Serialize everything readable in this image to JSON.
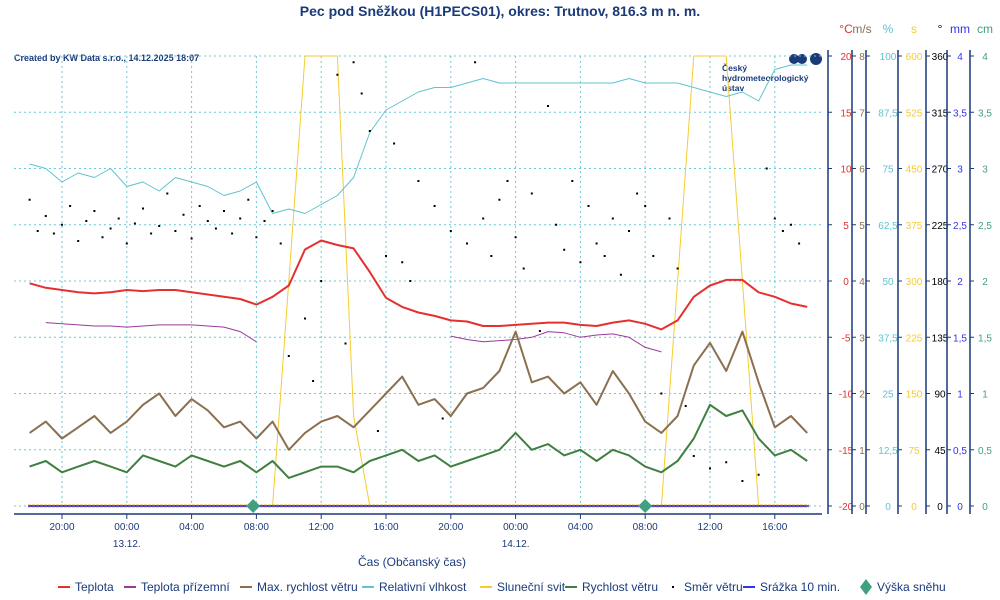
{
  "chart_data": {
    "type": "line",
    "title": "Pec pod Sněžkou (H1PECS01), okres: Trutnov, 816.3 m n. m.",
    "credit": "Created by KW Data s.r.o., 14.12.2025 18:07",
    "logo_text": [
      "Český",
      "hydrometeorologický",
      "ústav"
    ],
    "xlabel": "Čas (Občanský čas)",
    "x_unit": "hours since 12.12. 00:00",
    "xlim": [
      17,
      66.8
    ],
    "x_ticks": [
      {
        "h": 20,
        "label": "20:00"
      },
      {
        "h": 24,
        "label": "00:00",
        "date": "13.12."
      },
      {
        "h": 28,
        "label": "04:00"
      },
      {
        "h": 32,
        "label": "08:00"
      },
      {
        "h": 36,
        "label": "12:00"
      },
      {
        "h": 40,
        "label": "16:00"
      },
      {
        "h": 44,
        "label": "20:00"
      },
      {
        "h": 48,
        "label": "00:00",
        "date": "14.12."
      },
      {
        "h": 52,
        "label": "04:00"
      },
      {
        "h": 56,
        "label": "08:00"
      },
      {
        "h": 60,
        "label": "12:00"
      },
      {
        "h": 64,
        "label": "16:00"
      }
    ],
    "axes": [
      {
        "unit": "°C",
        "color": "#e53030",
        "min": -20,
        "max": 20,
        "ticks": [
          "-20",
          "-15",
          "-10",
          "-5",
          "0",
          "5",
          "10",
          "15",
          "20"
        ]
      },
      {
        "unit": "m/s",
        "color": "#8b7050",
        "min": 0,
        "max": 8,
        "ticks": [
          "0",
          "1",
          "2",
          "3",
          "4",
          "5",
          "6",
          "7",
          "8"
        ]
      },
      {
        "unit": "%",
        "color": "#5fc3d0",
        "min": 0,
        "max": 100,
        "ticks": [
          "0",
          "12,5",
          "25",
          "37,5",
          "50",
          "62,5",
          "75",
          "87,5",
          "100"
        ]
      },
      {
        "unit": "s",
        "color": "#f5cc30",
        "min": 0,
        "max": 600,
        "ticks": [
          "0",
          "75",
          "150",
          "225",
          "300",
          "375",
          "450",
          "525",
          "600"
        ]
      },
      {
        "unit": "°",
        "color": "#000000",
        "min": 0,
        "max": 360,
        "ticks": [
          "0",
          "45",
          "90",
          "135",
          "180",
          "225",
          "270",
          "315",
          "360"
        ]
      },
      {
        "unit": "mm",
        "color": "#3333ee",
        "min": 0,
        "max": 4,
        "ticks": [
          "0",
          "0,5",
          "1",
          "1,5",
          "2",
          "2,5",
          "3",
          "3,5",
          "4"
        ]
      },
      {
        "unit": "cm",
        "color": "#40a080",
        "min": 0,
        "max": 4,
        "ticks": [
          "0",
          "0,5",
          "1",
          "1,5",
          "2",
          "2,5",
          "3",
          "3,5",
          "4"
        ]
      }
    ],
    "x": [
      18,
      19,
      20,
      21,
      22,
      23,
      24,
      25,
      26,
      27,
      28,
      29,
      30,
      31,
      32,
      33,
      34,
      35,
      36,
      37,
      38,
      39,
      40,
      41,
      42,
      43,
      44,
      45,
      46,
      47,
      48,
      49,
      50,
      51,
      52,
      53,
      54,
      55,
      56,
      57,
      58,
      59,
      60,
      61,
      62,
      63,
      64,
      65,
      66
    ],
    "series": [
      {
        "name": "Teplota",
        "axis": 0,
        "color": "#e53030",
        "width": 2,
        "values": [
          -0.2,
          -0.6,
          -0.8,
          -1.0,
          -1.1,
          -1.0,
          -0.8,
          -0.9,
          -0.8,
          -0.8,
          -1.0,
          -1.2,
          -1.4,
          -1.6,
          -2.1,
          -1.4,
          -0.4,
          2.8,
          3.6,
          3.2,
          2.9,
          0.8,
          -1.5,
          -2.3,
          -2.8,
          -3.1,
          -3.5,
          -3.6,
          -4.0,
          -4.0,
          -3.9,
          -3.8,
          -3.7,
          -3.7,
          -3.9,
          -4.0,
          -3.7,
          -3.5,
          -3.8,
          -4.3,
          -3.5,
          -1.4,
          -0.4,
          0.1,
          0.1,
          -1.0,
          -1.4,
          -2.0,
          -2.3
        ]
      },
      {
        "name": "Teplota přízemní",
        "axis": 0,
        "color": "#9a3a9a",
        "width": 1,
        "values": [
          null,
          -3.7,
          -3.8,
          -3.9,
          -4.0,
          -4.0,
          -4.1,
          -4.0,
          -3.9,
          -3.9,
          -3.9,
          -4.0,
          -4.1,
          -4.5,
          -5.4,
          null,
          null,
          null,
          null,
          null,
          null,
          null,
          null,
          null,
          null,
          null,
          -4.9,
          -5.2,
          -5.4,
          -5.3,
          -5.2,
          -5.0,
          -4.5,
          -4.6,
          -5.0,
          -4.8,
          -4.7,
          -5.0,
          -5.9,
          -6.3,
          null,
          null,
          null,
          null,
          null,
          null,
          null,
          null,
          null
        ]
      },
      {
        "name": "Max. rychlost větru",
        "axis": 1,
        "color": "#8b7050",
        "width": 2,
        "values": [
          1.3,
          1.5,
          1.2,
          1.4,
          1.6,
          1.3,
          1.5,
          1.8,
          2.0,
          1.6,
          1.9,
          1.7,
          1.4,
          1.5,
          1.2,
          1.5,
          1.0,
          1.3,
          1.5,
          1.6,
          1.4,
          1.7,
          2.0,
          2.3,
          1.8,
          1.9,
          1.6,
          2.0,
          2.1,
          2.4,
          3.1,
          2.2,
          2.3,
          2.0,
          2.2,
          1.8,
          2.4,
          2.0,
          1.5,
          1.3,
          1.6,
          2.5,
          2.9,
          2.4,
          3.1,
          2.2,
          1.4,
          1.6,
          1.3
        ]
      },
      {
        "name": "Relativní vlhkost",
        "axis": 2,
        "color": "#5fc3d0",
        "width": 1,
        "values": [
          76,
          75,
          72,
          74,
          73,
          75,
          71,
          72,
          70,
          73,
          72,
          71,
          69,
          70,
          72,
          65,
          66,
          65,
          67,
          69,
          73,
          83,
          88,
          90,
          92,
          93,
          93,
          94,
          95,
          94,
          94,
          94,
          94,
          94,
          94,
          94,
          94,
          95,
          94,
          94,
          94,
          93,
          92,
          91,
          92,
          90,
          97,
          98,
          98
        ]
      },
      {
        "name": "Sluneční svit",
        "axis": 3,
        "color": "#f5cc30",
        "width": 1,
        "values": [
          0,
          0,
          0,
          0,
          0,
          0,
          0,
          0,
          0,
          0,
          0,
          0,
          0,
          0,
          0,
          0,
          300,
          600,
          600,
          600,
          120,
          0,
          0,
          0,
          0,
          0,
          0,
          0,
          0,
          0,
          0,
          0,
          0,
          0,
          0,
          0,
          0,
          0,
          0,
          0,
          300,
          600,
          600,
          600,
          300,
          0,
          0,
          0,
          0
        ]
      },
      {
        "name": "Rychlost větru",
        "axis": 1,
        "color": "#3f8040",
        "width": 2,
        "values": [
          0.7,
          0.8,
          0.6,
          0.7,
          0.8,
          0.7,
          0.6,
          0.9,
          0.8,
          0.7,
          0.9,
          0.8,
          0.7,
          0.8,
          0.6,
          0.8,
          0.5,
          0.6,
          0.7,
          0.7,
          0.6,
          0.8,
          0.9,
          1.0,
          0.8,
          0.9,
          0.7,
          0.8,
          0.9,
          1.0,
          1.3,
          1.0,
          1.1,
          0.9,
          1.0,
          0.8,
          1.0,
          0.9,
          0.7,
          0.6,
          0.8,
          1.2,
          1.8,
          1.6,
          1.7,
          1.2,
          0.9,
          1.0,
          0.8
        ]
      },
      {
        "name": "Srážka 10 min.",
        "axis": 5,
        "color": "#3333ee",
        "width": 2,
        "values": [
          0,
          0,
          0,
          0,
          0,
          0,
          0,
          0,
          0,
          0,
          0,
          0,
          0,
          0,
          0,
          0,
          0,
          0,
          0,
          0,
          0,
          0,
          0,
          0,
          0,
          0,
          0,
          0,
          0,
          0,
          0,
          0,
          0,
          0,
          0,
          0,
          0,
          0,
          0,
          0,
          0,
          0,
          0,
          0,
          0,
          0,
          0,
          0,
          0
        ]
      }
    ],
    "wind_direction": {
      "name": "Směr větru",
      "axis": 4,
      "points": [
        [
          18,
          245
        ],
        [
          18.5,
          220
        ],
        [
          19,
          232
        ],
        [
          19.5,
          218
        ],
        [
          20,
          225
        ],
        [
          20.5,
          240
        ],
        [
          21,
          212
        ],
        [
          21.5,
          228
        ],
        [
          22,
          236
        ],
        [
          22.5,
          215
        ],
        [
          23,
          222
        ],
        [
          23.5,
          230
        ],
        [
          24,
          210
        ],
        [
          24.5,
          226
        ],
        [
          25,
          238
        ],
        [
          25.5,
          218
        ],
        [
          26,
          224
        ],
        [
          26.5,
          250
        ],
        [
          27,
          220
        ],
        [
          27.5,
          233
        ],
        [
          28,
          214
        ],
        [
          28.5,
          240
        ],
        [
          29,
          228
        ],
        [
          29.5,
          222
        ],
        [
          30,
          236
        ],
        [
          30.5,
          218
        ],
        [
          31,
          230
        ],
        [
          31.5,
          245
        ],
        [
          32,
          215
        ],
        [
          32.5,
          228
        ],
        [
          33,
          236
        ],
        [
          33.5,
          210
        ],
        [
          34,
          120
        ],
        [
          35,
          150
        ],
        [
          35.5,
          100
        ],
        [
          36,
          180
        ],
        [
          37,
          345
        ],
        [
          37.5,
          130
        ],
        [
          38,
          355
        ],
        [
          38.5,
          330
        ],
        [
          39,
          300
        ],
        [
          39.5,
          60
        ],
        [
          40,
          200
        ],
        [
          40.5,
          290
        ],
        [
          41,
          195
        ],
        [
          41.5,
          180
        ],
        [
          42,
          260
        ],
        [
          43,
          240
        ],
        [
          43.5,
          70
        ],
        [
          44,
          220
        ],
        [
          45,
          210
        ],
        [
          45.5,
          355
        ],
        [
          46,
          230
        ],
        [
          46.5,
          200
        ],
        [
          47,
          245
        ],
        [
          47.5,
          260
        ],
        [
          48,
          215
        ],
        [
          48.5,
          190
        ],
        [
          49,
          250
        ],
        [
          49.5,
          140
        ],
        [
          50,
          320
        ],
        [
          50.5,
          225
        ],
        [
          51,
          205
        ],
        [
          51.5,
          260
        ],
        [
          52,
          195
        ],
        [
          52.5,
          240
        ],
        [
          53,
          210
        ],
        [
          53.5,
          200
        ],
        [
          54,
          230
        ],
        [
          54.5,
          185
        ],
        [
          55,
          220
        ],
        [
          55.5,
          250
        ],
        [
          56,
          240
        ],
        [
          56.5,
          200
        ],
        [
          57,
          90
        ],
        [
          57.5,
          230
        ],
        [
          58,
          190
        ],
        [
          58.5,
          80
        ],
        [
          59,
          40
        ],
        [
          60,
          30
        ],
        [
          61,
          35
        ],
        [
          62,
          20
        ],
        [
          63,
          25
        ],
        [
          63.5,
          270
        ],
        [
          64,
          230
        ],
        [
          64.5,
          220
        ],
        [
          65,
          225
        ],
        [
          65.5,
          210
        ]
      ]
    },
    "snow": {
      "name": "Výška sněhu",
      "axis": 6,
      "color": "#40a080",
      "points": [
        [
          31.8,
          0
        ],
        [
          56,
          0
        ]
      ]
    },
    "legend": [
      {
        "label": "Teplota",
        "color": "#e53030",
        "kind": "line"
      },
      {
        "label": "Teplota přízemní",
        "color": "#9a3a9a",
        "kind": "line"
      },
      {
        "label": "Max. rychlost větru",
        "color": "#8b7050",
        "kind": "line"
      },
      {
        "label": "Relativní vlhkost",
        "color": "#5fc3d0",
        "kind": "line"
      },
      {
        "label": "Sluneční svit",
        "color": "#f5cc30",
        "kind": "line"
      },
      {
        "label": "Rychlost větru",
        "color": "#3f8040",
        "kind": "line"
      },
      {
        "label": "Směr větru",
        "color": "#000000",
        "kind": "dot"
      },
      {
        "label": "Srážka 10 min.",
        "color": "#3333ee",
        "kind": "line"
      },
      {
        "label": "Výška sněhu",
        "color": "#40a080",
        "kind": "diamond"
      }
    ],
    "legend_position": "bottom",
    "grid": true
  }
}
